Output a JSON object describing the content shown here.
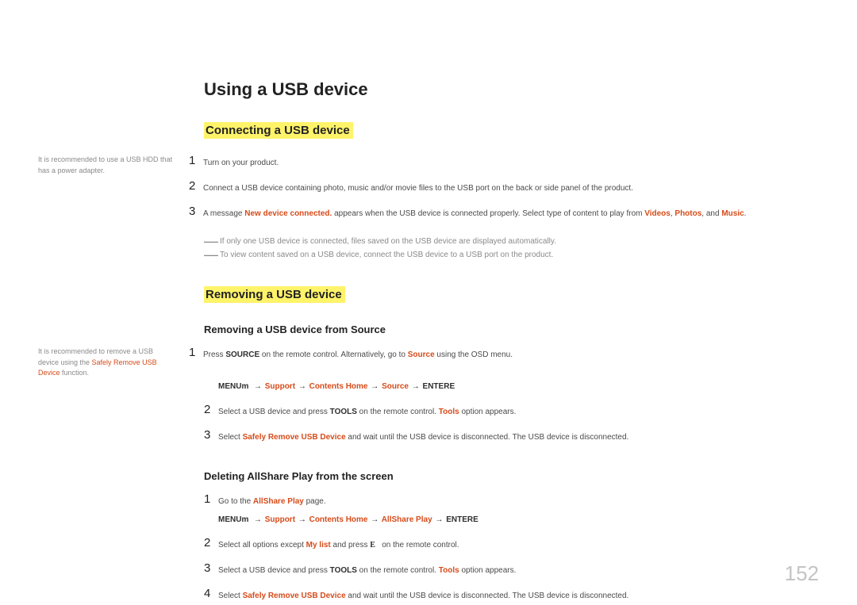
{
  "page_number": "152",
  "main_title": "Using a USB device",
  "section1": {
    "heading": "Connecting a USB device",
    "side_note": "It is recommended to use a USB HDD that has a power adapter.",
    "steps": [
      "Turn on your product.",
      "Connect a USB device containing photo, music and/or movie files to the USB port on the back or side panel of the product."
    ],
    "step3": {
      "pre": "A message ",
      "hl1": "New device connected.",
      "mid": " appears when the USB device is connected properly. Select type of content to play from ",
      "v": "Videos",
      "c1": ", ",
      "p": "Photos",
      "c2": ", and ",
      "m": "Music",
      "end": "."
    },
    "notes": [
      "If only one USB device is connected, files saved on the USB device are displayed automatically.",
      "To view content saved on a USB device, connect the USB device to a USB port on the product."
    ]
  },
  "section2": {
    "heading": "Removing a USB device",
    "sub1": {
      "heading": "Removing a USB device from Source",
      "side_note_pre": "It is recommended to remove a USB device using the ",
      "side_note_hl": "Safely Remove USB Device",
      "side_note_post": " function.",
      "step1": {
        "pre": "Press ",
        "bold": "SOURCE",
        "mid": " on the remote control. Alternatively, go to ",
        "hl": "Source",
        "post": " using the OSD menu."
      },
      "menu_path": {
        "menu": "MENU",
        "m": "m",
        "arrow": "→",
        "support": "Support",
        "contents": "Contents Home",
        "source": "Source",
        "enter": "ENTER",
        "e": "E"
      },
      "step2": {
        "pre": "Select a USB device and press ",
        "bold": "TOOLS",
        "mid": " on the remote control. ",
        "hl": "Tools",
        "post": " option appears."
      },
      "step3": {
        "pre": "Select ",
        "hl": "Safely Remove USB Device",
        "post": " and wait until the USB device is disconnected. The USB device is disconnected."
      }
    },
    "sub2": {
      "heading": "Deleting AllShare Play from the screen",
      "step1": {
        "pre": "Go to the ",
        "hl": "AllShare Play",
        "post": " page."
      },
      "menu_path": {
        "menu": "MENU",
        "m": "m",
        "arrow": "→",
        "support": "Support",
        "contents": "Contents Home",
        "allshare": "AllShare Play",
        "enter": "ENTER",
        "e": "E"
      },
      "step2_a": {
        "pre": "Select all options except ",
        "hl": "My list",
        "mid": " and press ",
        "bold": "E",
        "post": " on the remote control."
      },
      "step2_b": {
        "pre": "Select a USB device and press ",
        "bold": "TOOLS",
        "mid": " on the remote control. ",
        "hl": "Tools",
        "post": " option appears."
      },
      "step3": {
        "pre": "Select ",
        "hl": "Safely Remove USB Device",
        "post": " and wait until the USB device is disconnected. The USB device is disconnected."
      }
    }
  },
  "nums": {
    "n1": "1",
    "n2": "2",
    "n3": "3",
    "n4": "4"
  }
}
